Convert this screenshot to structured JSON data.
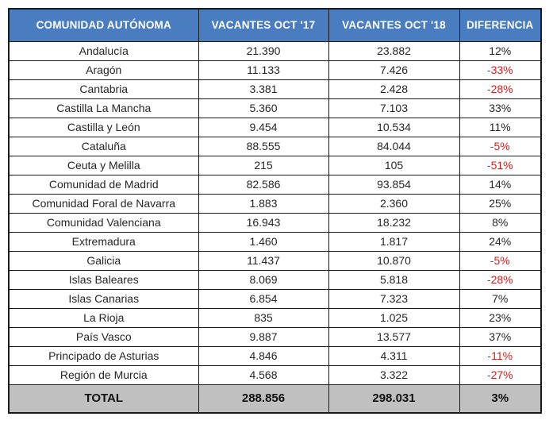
{
  "chart_data": {
    "type": "table",
    "columns": [
      "COMUNIDAD AUTÓNOMA",
      "VACANTES OCT '17",
      "VACANTES OCT '18",
      "DIFERENCIA"
    ],
    "rows": [
      {
        "community": "Andalucía",
        "oct17": "21.390",
        "oct18": "23.882",
        "diff": "12%"
      },
      {
        "community": "Aragón",
        "oct17": "11.133",
        "oct18": "7.426",
        "diff": "-33%"
      },
      {
        "community": "Cantabria",
        "oct17": "3.381",
        "oct18": "2.428",
        "diff": "-28%"
      },
      {
        "community": "Castilla La Mancha",
        "oct17": "5.360",
        "oct18": "7.103",
        "diff": "33%"
      },
      {
        "community": "Castilla y León",
        "oct17": "9.454",
        "oct18": "10.534",
        "diff": "11%"
      },
      {
        "community": "Cataluña",
        "oct17": "88.555",
        "oct18": "84.044",
        "diff": "-5%"
      },
      {
        "community": "Ceuta y Melilla",
        "oct17": "215",
        "oct18": "105",
        "diff": "-51%"
      },
      {
        "community": "Comunidad de Madrid",
        "oct17": "82.586",
        "oct18": "93.854",
        "diff": "14%"
      },
      {
        "community": "Comunidad Foral de Navarra",
        "oct17": "1.883",
        "oct18": "2.360",
        "diff": "25%"
      },
      {
        "community": "Comunidad Valenciana",
        "oct17": "16.943",
        "oct18": "18.232",
        "diff": "8%"
      },
      {
        "community": "Extremadura",
        "oct17": "1.460",
        "oct18": "1.817",
        "diff": "24%"
      },
      {
        "community": "Galicia",
        "oct17": "11.437",
        "oct18": "10.870",
        "diff": "-5%"
      },
      {
        "community": "Islas Baleares",
        "oct17": "8.069",
        "oct18": "5.818",
        "diff": "-28%"
      },
      {
        "community": "Islas Canarias",
        "oct17": "6.854",
        "oct18": "7.323",
        "diff": "7%"
      },
      {
        "community": "La Rioja",
        "oct17": "835",
        "oct18": "1.025",
        "diff": "23%"
      },
      {
        "community": "País Vasco",
        "oct17": "9.887",
        "oct18": "13.577",
        "diff": "37%"
      },
      {
        "community": "Principado de Asturias",
        "oct17": "4.846",
        "oct18": "4.311",
        "diff": "-11%"
      },
      {
        "community": "Región de Murcia",
        "oct17": "4.568",
        "oct18": "3.322",
        "diff": "-27%"
      }
    ],
    "total": {
      "label": "TOTAL",
      "oct17": "288.856",
      "oct18": "298.031",
      "diff": "3%"
    }
  },
  "colors": {
    "header_bg": "#4a7cc0",
    "header_text": "#ffffff",
    "total_bg": "#c0c0c0",
    "negative": "#cc2222",
    "border": "#1a1a1a"
  }
}
